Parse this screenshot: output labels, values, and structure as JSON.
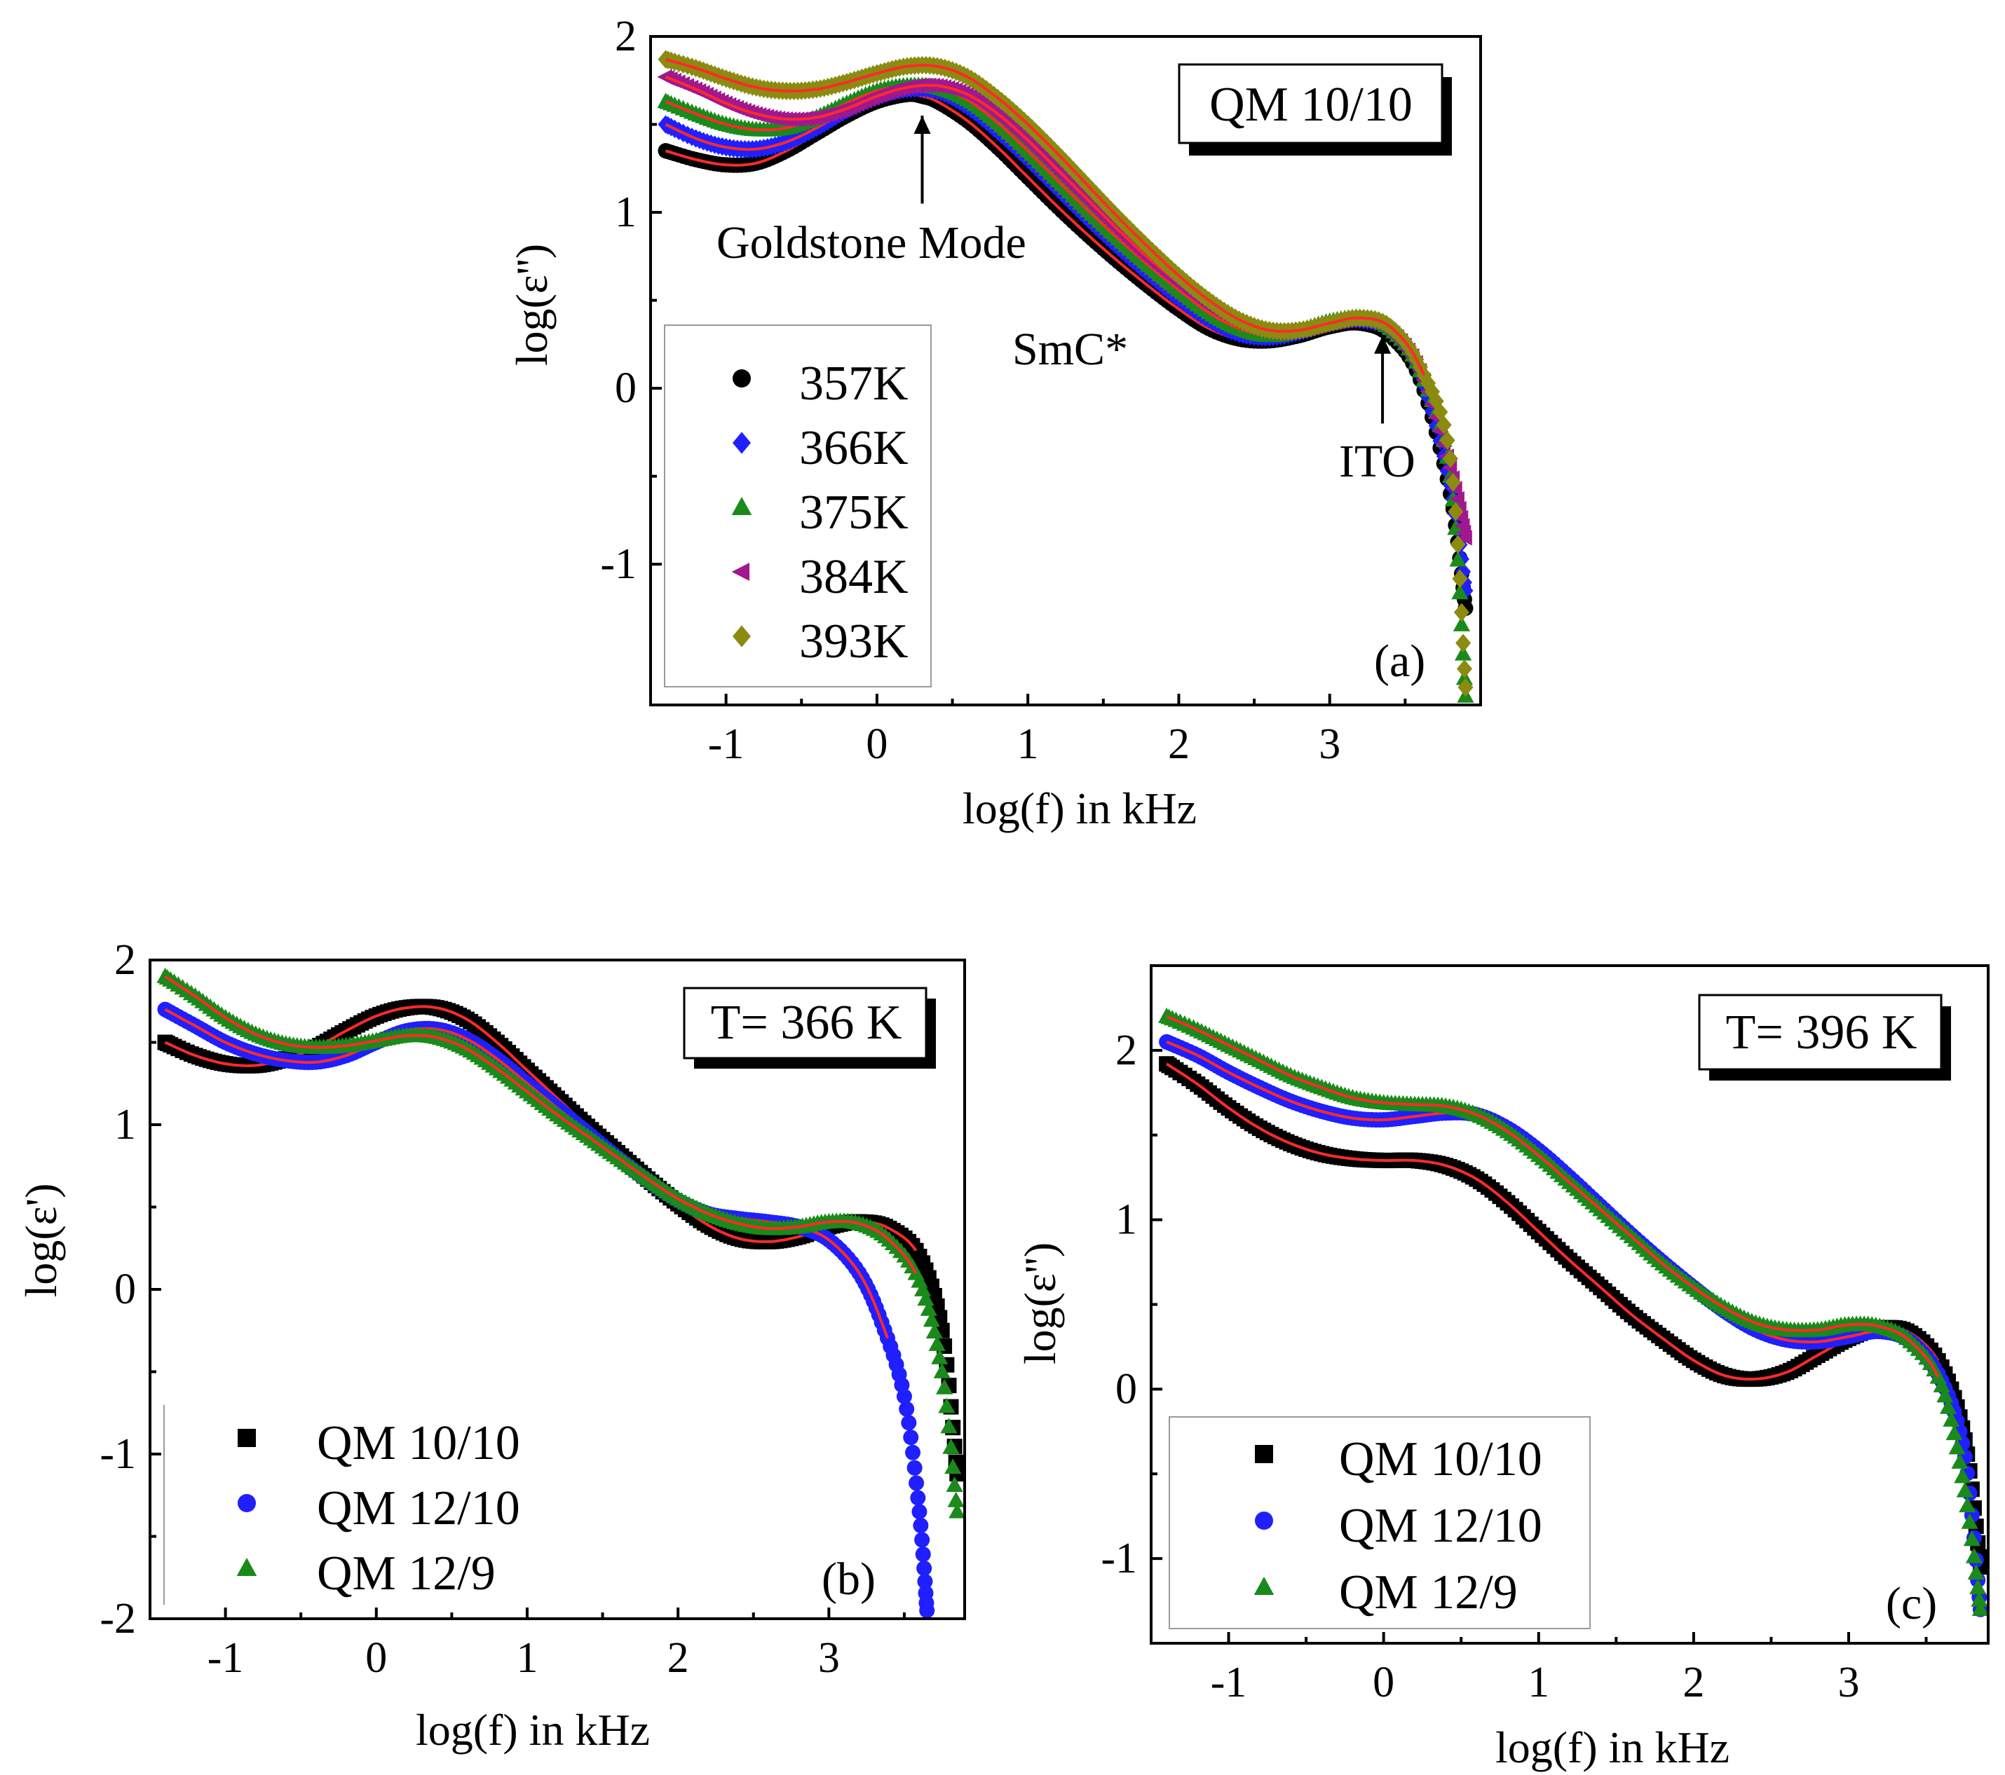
{
  "figure": {
    "panels": [
      "a",
      "b",
      "c"
    ]
  },
  "colors": {
    "357K": "#000000",
    "366K": "#1f1fff",
    "375K": "#1a8a1a",
    "384K": "#a01890",
    "393K": "#8b8b10",
    "fit": "#ff2a2a",
    "QM 10/10": "#000000",
    "QM 12/10": "#1f1fff",
    "QM 12/9": "#1a8a1a"
  },
  "chart_data": [
    {
      "id": "a",
      "type": "scatter",
      "panel_label": "(a)",
      "title_box": "QM 10/10",
      "xlabel": "log(f) in kHz",
      "ylabel": "log(ε'')",
      "xlim": [
        -1.5,
        4.0
      ],
      "ylim": [
        -1.8,
        2.0
      ],
      "xticks": [
        -1,
        0,
        1,
        2,
        3
      ],
      "yticks": [
        -1,
        0,
        1,
        2
      ],
      "x_tick_labels": [
        "-1",
        "0",
        "1",
        "2",
        "3"
      ],
      "y_tick_labels": [
        "-1",
        "0",
        "1",
        "2"
      ],
      "annotations": [
        {
          "text": "Goldstone Mode",
          "arrow_from": [
            0.3,
            1.05
          ],
          "arrow_to": [
            0.3,
            1.55
          ]
        },
        {
          "text": "SmC*"
        },
        {
          "text": "ITO",
          "arrow_from": [
            3.35,
            -0.2
          ],
          "arrow_to": [
            3.35,
            0.3
          ]
        }
      ],
      "legend_position": "mid-left",
      "series": [
        {
          "name": "357K",
          "marker": "circle",
          "x": [
            -1.4,
            -1.2,
            -1.0,
            -0.8,
            -0.6,
            -0.4,
            -0.2,
            0.0,
            0.2,
            0.3,
            0.4,
            0.6,
            0.8,
            1.0,
            1.2,
            1.4,
            1.6,
            1.8,
            2.0,
            2.2,
            2.4,
            2.6,
            2.8,
            3.0,
            3.2,
            3.4,
            3.6,
            3.8,
            3.9
          ],
          "y": [
            1.35,
            1.3,
            1.27,
            1.28,
            1.35,
            1.45,
            1.55,
            1.63,
            1.67,
            1.66,
            1.63,
            1.52,
            1.37,
            1.2,
            1.03,
            0.87,
            0.72,
            0.58,
            0.45,
            0.34,
            0.28,
            0.27,
            0.3,
            0.35,
            0.37,
            0.3,
            0.05,
            -0.6,
            -1.25
          ]
        },
        {
          "name": "366K",
          "marker": "diamond",
          "x": [
            -1.4,
            -1.2,
            -1.0,
            -0.8,
            -0.6,
            -0.4,
            -0.2,
            0.0,
            0.2,
            0.4,
            0.6,
            0.8,
            1.0,
            1.2,
            1.4,
            1.6,
            1.8,
            2.0,
            2.2,
            2.4,
            2.6,
            2.8,
            3.0,
            3.2,
            3.4,
            3.6,
            3.8,
            3.9
          ],
          "y": [
            1.5,
            1.42,
            1.37,
            1.36,
            1.4,
            1.48,
            1.58,
            1.66,
            1.7,
            1.69,
            1.6,
            1.46,
            1.3,
            1.13,
            0.96,
            0.8,
            0.65,
            0.51,
            0.39,
            0.31,
            0.29,
            0.32,
            0.37,
            0.39,
            0.33,
            0.08,
            -0.55,
            -1.15
          ]
        },
        {
          "name": "375K",
          "marker": "triangle",
          "x": [
            -1.4,
            -1.2,
            -1.0,
            -0.8,
            -0.6,
            -0.4,
            -0.2,
            0.0,
            0.2,
            0.4,
            0.6,
            0.8,
            1.0,
            1.2,
            1.4,
            1.6,
            1.8,
            2.0,
            2.2,
            2.4,
            2.6,
            2.8,
            3.0,
            3.2,
            3.4,
            3.6,
            3.8,
            3.9
          ],
          "y": [
            1.63,
            1.56,
            1.5,
            1.47,
            1.48,
            1.54,
            1.62,
            1.69,
            1.72,
            1.71,
            1.64,
            1.51,
            1.35,
            1.18,
            1.01,
            0.85,
            0.7,
            0.56,
            0.43,
            0.34,
            0.3,
            0.33,
            0.38,
            0.4,
            0.34,
            0.1,
            -0.5,
            -1.75
          ]
        },
        {
          "name": "384K",
          "marker": "left-triangle",
          "x": [
            -1.4,
            -1.2,
            -1.0,
            -0.8,
            -0.6,
            -0.4,
            -0.2,
            0.0,
            0.2,
            0.4,
            0.6,
            0.8,
            1.0,
            1.2,
            1.4,
            1.6,
            1.8,
            2.0,
            2.2,
            2.4,
            2.6,
            2.8,
            3.0,
            3.2,
            3.4,
            3.6,
            3.8,
            3.9
          ],
          "y": [
            1.77,
            1.7,
            1.62,
            1.56,
            1.53,
            1.54,
            1.59,
            1.66,
            1.71,
            1.72,
            1.67,
            1.56,
            1.41,
            1.24,
            1.07,
            0.9,
            0.74,
            0.6,
            0.47,
            0.37,
            0.32,
            0.33,
            0.37,
            0.39,
            0.33,
            0.1,
            -0.45,
            -0.85
          ]
        },
        {
          "name": "393K",
          "marker": "diamond",
          "x": [
            -1.4,
            -1.2,
            -1.0,
            -0.8,
            -0.6,
            -0.4,
            -0.2,
            0.0,
            0.2,
            0.4,
            0.6,
            0.8,
            1.0,
            1.2,
            1.4,
            1.6,
            1.8,
            2.0,
            2.2,
            2.4,
            2.6,
            2.8,
            3.0,
            3.2,
            3.4,
            3.6,
            3.8,
            3.9
          ],
          "y": [
            1.87,
            1.82,
            1.76,
            1.71,
            1.69,
            1.7,
            1.74,
            1.79,
            1.83,
            1.83,
            1.77,
            1.65,
            1.5,
            1.33,
            1.15,
            0.97,
            0.8,
            0.64,
            0.5,
            0.39,
            0.33,
            0.33,
            0.37,
            0.4,
            0.35,
            0.12,
            -0.4,
            -1.7
          ]
        }
      ]
    },
    {
      "id": "b",
      "type": "scatter",
      "panel_label": "(b)",
      "title_box": "T= 366 K",
      "xlabel": "log(f) in kHz",
      "ylabel": "log(ε')",
      "xlim": [
        -1.5,
        3.9
      ],
      "ylim": [
        -2.0,
        2.0
      ],
      "xticks": [
        -1,
        0,
        1,
        2,
        3
      ],
      "yticks": [
        -2,
        -1,
        0,
        1,
        2
      ],
      "x_tick_labels": [
        "-1",
        "0",
        "1",
        "2",
        "3"
      ],
      "y_tick_labels": [
        "-2",
        "-1",
        "0",
        "1",
        "2"
      ],
      "legend_position": "bottom-left",
      "series": [
        {
          "name": "QM 10/10",
          "marker": "square",
          "x": [
            -1.4,
            -1.2,
            -1.0,
            -0.8,
            -0.6,
            -0.4,
            -0.2,
            0.0,
            0.2,
            0.4,
            0.6,
            0.8,
            1.0,
            1.2,
            1.4,
            1.6,
            1.8,
            2.0,
            2.2,
            2.4,
            2.6,
            2.8,
            3.0,
            3.2,
            3.4,
            3.6,
            3.75,
            3.85
          ],
          "y": [
            1.5,
            1.42,
            1.37,
            1.36,
            1.4,
            1.47,
            1.57,
            1.66,
            1.71,
            1.71,
            1.64,
            1.5,
            1.33,
            1.16,
            0.99,
            0.83,
            0.67,
            0.52,
            0.39,
            0.31,
            0.29,
            0.32,
            0.38,
            0.41,
            0.37,
            0.2,
            -0.25,
            -1.12
          ]
        },
        {
          "name": "QM 12/10",
          "marker": "circle",
          "x": [
            -1.4,
            -1.2,
            -1.0,
            -0.8,
            -0.6,
            -0.4,
            -0.2,
            0.0,
            0.2,
            0.4,
            0.6,
            0.8,
            1.0,
            1.2,
            1.4,
            1.6,
            1.8,
            2.0,
            2.2,
            2.4,
            2.6,
            2.8,
            3.0,
            3.2,
            3.35,
            3.5,
            3.6,
            3.65
          ],
          "y": [
            1.7,
            1.6,
            1.5,
            1.43,
            1.39,
            1.38,
            1.42,
            1.5,
            1.57,
            1.58,
            1.52,
            1.4,
            1.25,
            1.1,
            0.95,
            0.8,
            0.66,
            0.54,
            0.46,
            0.43,
            0.41,
            0.38,
            0.3,
            0.1,
            -0.2,
            -0.65,
            -1.35,
            -1.95
          ]
        },
        {
          "name": "QM 12/9",
          "marker": "triangle",
          "x": [
            -1.4,
            -1.2,
            -1.0,
            -0.8,
            -0.6,
            -0.4,
            -0.2,
            0.0,
            0.2,
            0.4,
            0.6,
            0.8,
            1.0,
            1.2,
            1.4,
            1.6,
            1.8,
            2.0,
            2.2,
            2.4,
            2.6,
            2.8,
            3.0,
            3.2,
            3.4,
            3.6,
            3.75,
            3.85
          ],
          "y": [
            1.9,
            1.78,
            1.65,
            1.55,
            1.49,
            1.47,
            1.48,
            1.51,
            1.54,
            1.53,
            1.46,
            1.34,
            1.2,
            1.06,
            0.93,
            0.8,
            0.67,
            0.55,
            0.46,
            0.4,
            0.37,
            0.38,
            0.41,
            0.4,
            0.3,
            0.05,
            -0.5,
            -1.35
          ]
        }
      ]
    },
    {
      "id": "c",
      "type": "scatter",
      "panel_label": "(c)",
      "title_box": "T= 396 K",
      "xlabel": "log(f) in kHz",
      "ylabel": "log(ε'')",
      "xlim": [
        -1.5,
        3.9
      ],
      "ylim": [
        -1.5,
        2.5
      ],
      "xticks": [
        -1,
        0,
        1,
        2,
        3
      ],
      "yticks": [
        -1,
        0,
        1,
        2
      ],
      "x_tick_labels": [
        "-1",
        "0",
        "1",
        "2",
        "3"
      ],
      "y_tick_labels": [
        "-1",
        "0",
        "1",
        "2"
      ],
      "legend_position": "bottom-left",
      "series": [
        {
          "name": "QM 10/10",
          "marker": "square",
          "x": [
            -1.4,
            -1.2,
            -1.0,
            -0.8,
            -0.6,
            -0.4,
            -0.2,
            0.0,
            0.2,
            0.4,
            0.6,
            0.8,
            1.0,
            1.2,
            1.4,
            1.6,
            1.8,
            2.0,
            2.2,
            2.4,
            2.6,
            2.8,
            3.0,
            3.2,
            3.4,
            3.6,
            3.75,
            3.85
          ],
          "y": [
            1.92,
            1.8,
            1.66,
            1.54,
            1.45,
            1.39,
            1.36,
            1.35,
            1.35,
            1.32,
            1.24,
            1.1,
            0.93,
            0.76,
            0.6,
            0.44,
            0.3,
            0.17,
            0.08,
            0.06,
            0.1,
            0.2,
            0.3,
            0.36,
            0.33,
            0.13,
            -0.3,
            -1.05
          ]
        },
        {
          "name": "QM 12/10",
          "marker": "circle",
          "x": [
            -1.4,
            -1.2,
            -1.0,
            -0.8,
            -0.6,
            -0.4,
            -0.2,
            0.0,
            0.2,
            0.4,
            0.6,
            0.8,
            1.0,
            1.2,
            1.4,
            1.6,
            1.8,
            2.0,
            2.2,
            2.4,
            2.6,
            2.8,
            3.0,
            3.2,
            3.4,
            3.6,
            3.75,
            3.85
          ],
          "y": [
            2.05,
            1.97,
            1.87,
            1.78,
            1.7,
            1.64,
            1.6,
            1.59,
            1.61,
            1.63,
            1.62,
            1.54,
            1.41,
            1.25,
            1.08,
            0.91,
            0.75,
            0.6,
            0.46,
            0.35,
            0.29,
            0.28,
            0.31,
            0.34,
            0.28,
            0.05,
            -0.4,
            -1.3
          ]
        },
        {
          "name": "QM 12/9",
          "marker": "triangle",
          "x": [
            -1.4,
            -1.2,
            -1.0,
            -0.8,
            -0.6,
            -0.4,
            -0.2,
            0.0,
            0.2,
            0.4,
            0.6,
            0.8,
            1.0,
            1.2,
            1.4,
            1.6,
            1.8,
            2.0,
            2.2,
            2.4,
            2.6,
            2.8,
            3.0,
            3.2,
            3.4,
            3.6,
            3.75,
            3.85
          ],
          "y": [
            2.2,
            2.12,
            2.03,
            1.94,
            1.85,
            1.78,
            1.72,
            1.69,
            1.68,
            1.67,
            1.62,
            1.52,
            1.38,
            1.22,
            1.06,
            0.9,
            0.74,
            0.6,
            0.48,
            0.39,
            0.35,
            0.35,
            0.38,
            0.37,
            0.28,
            0.02,
            -0.6,
            -1.3
          ]
        }
      ]
    }
  ]
}
